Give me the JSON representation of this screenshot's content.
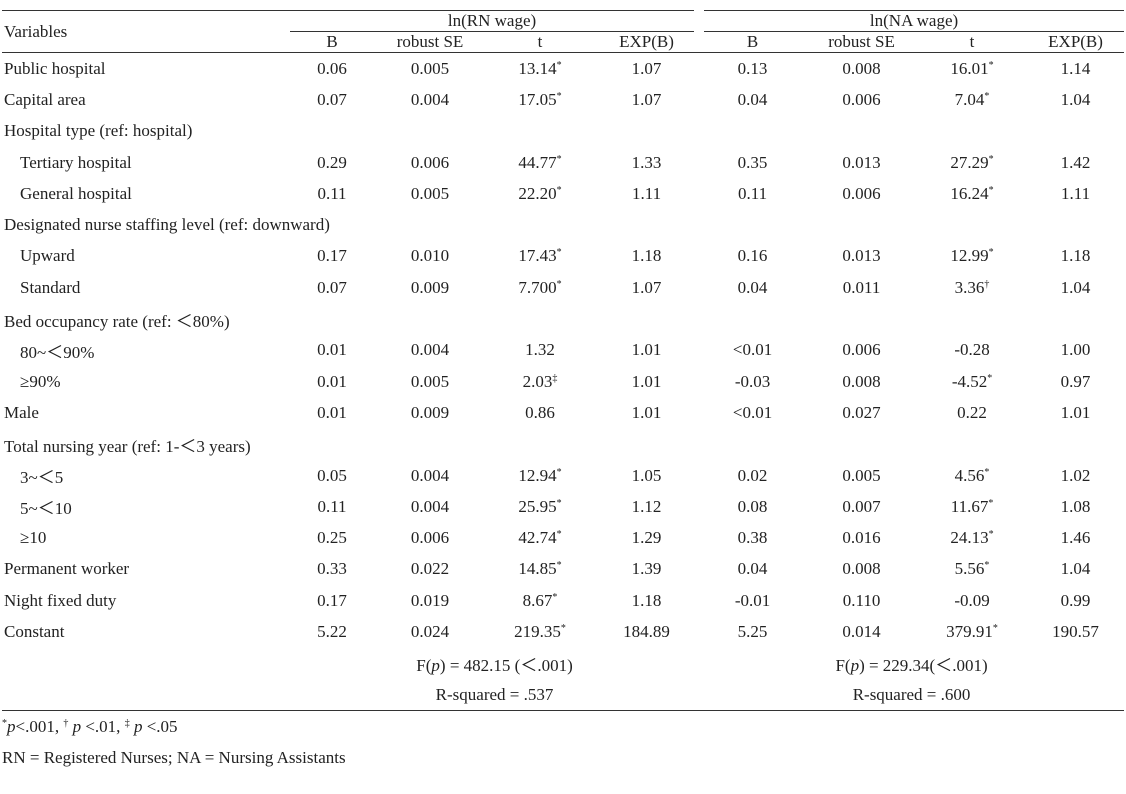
{
  "table": {
    "header": {
      "variables": "Variables",
      "groups": [
        "ln(RN wage)",
        "ln(NA wage)"
      ],
      "columns": [
        "B",
        "robust SE",
        "t",
        "EXP(B)",
        "B",
        "robust SE",
        "t",
        "EXP(B)"
      ]
    },
    "rows": [
      {
        "label": "Public hospital",
        "indent": false,
        "cells": [
          "0.06",
          "0.005",
          {
            "text": "13.14",
            "sup": "*"
          },
          "1.07",
          "0.13",
          "0.008",
          {
            "text": "16.01",
            "sup": "*"
          },
          "1.14"
        ]
      },
      {
        "label": "Capital area",
        "indent": false,
        "cells": [
          "0.07",
          "0.004",
          {
            "text": "17.05",
            "sup": "*"
          },
          "1.07",
          "0.04",
          "0.006",
          {
            "text": "7.04",
            "sup": "*"
          },
          "1.04"
        ]
      },
      {
        "label": "Hospital type (ref: hospital)",
        "indent": false
      },
      {
        "label": "Tertiary hospital",
        "indent": true,
        "cells": [
          "0.29",
          "0.006",
          {
            "text": "44.77",
            "sup": "*"
          },
          "1.33",
          "0.35",
          "0.013",
          {
            "text": "27.29",
            "sup": "*"
          },
          "1.42"
        ]
      },
      {
        "label": "General hospital",
        "indent": true,
        "cells": [
          "0.11",
          "0.005",
          {
            "text": "22.20",
            "sup": "*"
          },
          "1.11",
          "0.11",
          "0.006",
          {
            "text": "16.24",
            "sup": "*"
          },
          "1.11"
        ]
      },
      {
        "label": "Designated nurse staffing level (ref: downward)",
        "indent": false
      },
      {
        "label": "Upward",
        "indent": true,
        "cells": [
          "0.17",
          "0.010",
          {
            "text": "17.43",
            "sup": "*"
          },
          "1.18",
          "0.16",
          "0.013",
          {
            "text": "12.99",
            "sup": "*"
          },
          "1.18"
        ]
      },
      {
        "label": "Standard",
        "indent": true,
        "cells": [
          "0.07",
          "0.009",
          {
            "text": "7.700",
            "sup": "*"
          },
          "1.07",
          "0.04",
          "0.011",
          {
            "text": "3.36",
            "sup": "†"
          },
          "1.04"
        ]
      },
      {
        "label": "Bed occupancy rate (ref: ＜80%)",
        "indent": false
      },
      {
        "label": "80~＜90%",
        "indent": true,
        "cells": [
          "0.01",
          "0.004",
          "1.32",
          "1.01",
          "<0.01",
          "0.006",
          "-0.28",
          "1.00"
        ]
      },
      {
        "label": "≥90%",
        "indent": true,
        "cells": [
          "0.01",
          "0.005",
          {
            "text": "2.03",
            "sup": "‡"
          },
          "1.01",
          "-0.03",
          "0.008",
          {
            "text": "-4.52",
            "sup": "*"
          },
          "0.97"
        ]
      },
      {
        "label": "Male",
        "indent": false,
        "cells": [
          "0.01",
          "0.009",
          "0.86",
          "1.01",
          "<0.01",
          "0.027",
          "0.22",
          "1.01"
        ]
      },
      {
        "label": "Total nursing year (ref: 1-＜3 years)",
        "indent": false
      },
      {
        "label": "3~＜5",
        "indent": true,
        "cells": [
          "0.05",
          "0.004",
          {
            "text": "12.94",
            "sup": "*"
          },
          "1.05",
          "0.02",
          "0.005",
          {
            "text": "4.56",
            "sup": "*"
          },
          "1.02"
        ]
      },
      {
        "label": "5~＜10",
        "indent": true,
        "cells": [
          "0.11",
          "0.004",
          {
            "text": "25.95",
            "sup": "*"
          },
          "1.12",
          "0.08",
          "0.007",
          {
            "text": "11.67",
            "sup": "*"
          },
          "1.08"
        ]
      },
      {
        "label": "≥10",
        "indent": true,
        "cells": [
          "0.25",
          "0.006",
          {
            "text": "42.74",
            "sup": "*"
          },
          "1.29",
          "0.38",
          "0.016",
          {
            "text": "24.13",
            "sup": "*"
          },
          "1.46"
        ]
      },
      {
        "label": "Permanent worker",
        "indent": false,
        "cells": [
          "0.33",
          "0.022",
          {
            "text": "14.85",
            "sup": "*"
          },
          "1.39",
          "0.04",
          "0.008",
          {
            "text": "5.56",
            "sup": "*"
          },
          "1.04"
        ]
      },
      {
        "label": "Night fixed duty",
        "indent": false,
        "cells": [
          "0.17",
          "0.019",
          {
            "text": "8.67",
            "sup": "*"
          },
          "1.18",
          "-0.01",
          "0.110",
          "-0.09",
          "0.99"
        ]
      },
      {
        "label": "Constant",
        "indent": false,
        "cells": [
          "5.22",
          "0.024",
          {
            "text": "219.35",
            "sup": "*"
          },
          "184.89",
          "5.25",
          "0.014",
          {
            "text": "379.91",
            "sup": "*"
          },
          "190.57"
        ]
      }
    ],
    "stats": [
      [
        {
          "pre": "F(",
          "italic": "p",
          "post": ") = 482.15 (＜.001)"
        },
        {
          "pre": "F(",
          "italic": "p",
          "post": ") = 229.34(＜.001)"
        }
      ],
      [
        {
          "pre": "R-squared = .537"
        },
        {
          "pre": "R-squared = .600"
        }
      ]
    ]
  },
  "notes": {
    "significance": [
      {
        "sup": "*",
        "italic": "p",
        "text": "<.001, "
      },
      {
        "sup": "†",
        "italic": " p",
        "text": " <.01, "
      },
      {
        "sup": "‡",
        "italic": " p",
        "text": " <.05"
      }
    ],
    "abbreviations": "RN = Registered Nurses; NA = Nursing Assistants"
  }
}
